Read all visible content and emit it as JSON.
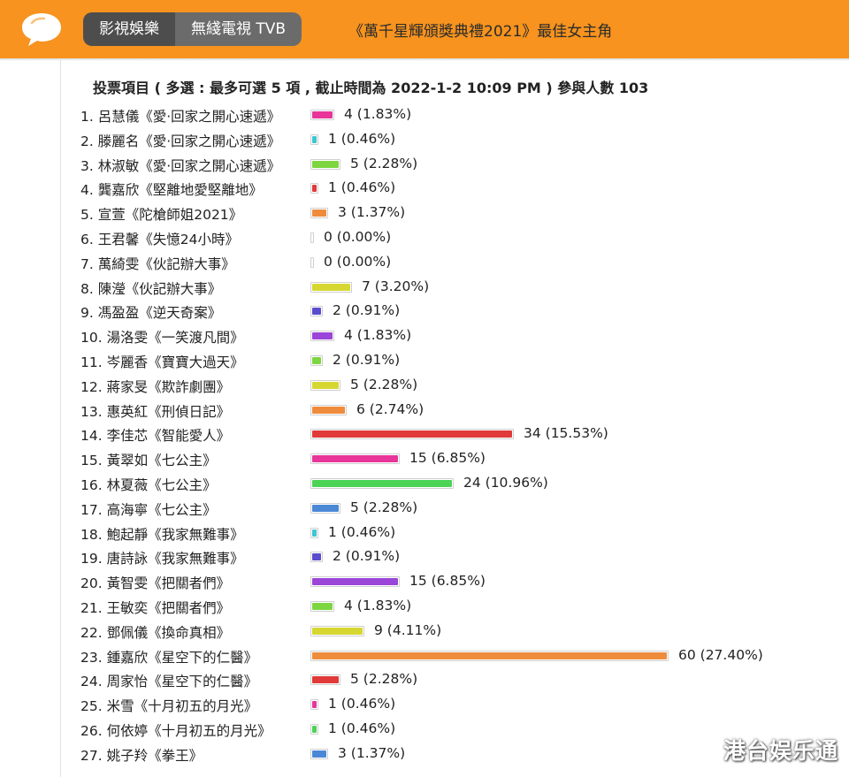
{
  "header": {
    "tabs": [
      "影視娛樂",
      "無綫電視 TVB"
    ],
    "poll_title": "《萬千星輝頒獎典禮2021》最佳女主角",
    "logo_icon": "speech-bubble-icon"
  },
  "poll": {
    "summary": "投票項目 ( 多選 : 最多可選 5 項 , 截止時間為 2022-1-2 10:09 PM ) 參與人數 103"
  },
  "chart_data": {
    "type": "bar",
    "categories": [
      "1. 呂慧儀《愛·回家之開心速遞》",
      "2. 滕麗名《愛·回家之開心速遞》",
      "3. 林淑敏《愛·回家之開心速遞》",
      "4. 龔嘉欣《堅離地愛堅離地》",
      "5. 宣萱《陀槍師姐2021》",
      "6. 王君馨《失憶24小時》",
      "7. 萬綺雯《伙記辦大事》",
      "8. 陳瀅《伙記辦大事》",
      "9. 馮盈盈《逆天奇案》",
      "10. 湯洛雯《一笑渡凡間》",
      "11. 岑麗香《寶寶大過天》",
      "12. 蔣家旻《欺詐劇團》",
      "13. 惠英紅《刑偵日記》",
      "14. 李佳芯《智能愛人》",
      "15. 黃翠如《七公主》",
      "16. 林夏薇《七公主》",
      "17. 高海寧《七公主》",
      "18. 鮑起靜《我家無難事》",
      "19. 唐詩詠《我家無難事》",
      "20. 黃智雯《把關者們》",
      "21. 王敏奕《把關者們》",
      "22. 鄧佩儀《換命真相》",
      "23. 鍾嘉欣《星空下的仁醫》",
      "24. 周家怡《星空下的仁醫》",
      "25. 米雪《十月初五的月光》",
      "26. 何依婷《十月初五的月光》",
      "27. 姚子羚《拳王》"
    ],
    "values": [
      4,
      1,
      5,
      1,
      3,
      0,
      0,
      7,
      2,
      4,
      2,
      5,
      6,
      34,
      15,
      24,
      5,
      1,
      2,
      15,
      4,
      9,
      60,
      5,
      1,
      1,
      3
    ],
    "labels": [
      "4 (1.83%)",
      "1 (0.46%)",
      "5 (2.28%)",
      "1 (0.46%)",
      "3 (1.37%)",
      "0 (0.00%)",
      "0 (0.00%)",
      "7 (3.20%)",
      "2 (0.91%)",
      "4 (1.83%)",
      "2 (0.91%)",
      "5 (2.28%)",
      "6 (2.74%)",
      "34 (15.53%)",
      "15 (6.85%)",
      "24 (10.96%)",
      "5 (2.28%)",
      "1 (0.46%)",
      "2 (0.91%)",
      "15 (6.85%)",
      "4 (1.83%)",
      "9 (4.11%)",
      "60 (27.40%)",
      "5 (2.28%)",
      "1 (0.46%)",
      "1 (0.46%)",
      "3 (1.37%)"
    ],
    "colors": [
      "#e8359a",
      "#3fc6d4",
      "#7dd640",
      "#e03a3a",
      "#ef8c3c",
      "#b9c6e6",
      "#b9c6e6",
      "#d7d732",
      "#5a4ccf",
      "#9b45d9",
      "#7dd640",
      "#d7d732",
      "#ef8c3c",
      "#e03a3a",
      "#e8359a",
      "#4bd356",
      "#4a88d6",
      "#3fc6d4",
      "#5a4ccf",
      "#9b45d9",
      "#7dd640",
      "#d7d732",
      "#ef8c3c",
      "#e03a3a",
      "#e8359a",
      "#4bd356",
      "#4a88d6"
    ],
    "xlim": [
      0,
      60
    ]
  },
  "watermark": "港台娱乐通"
}
